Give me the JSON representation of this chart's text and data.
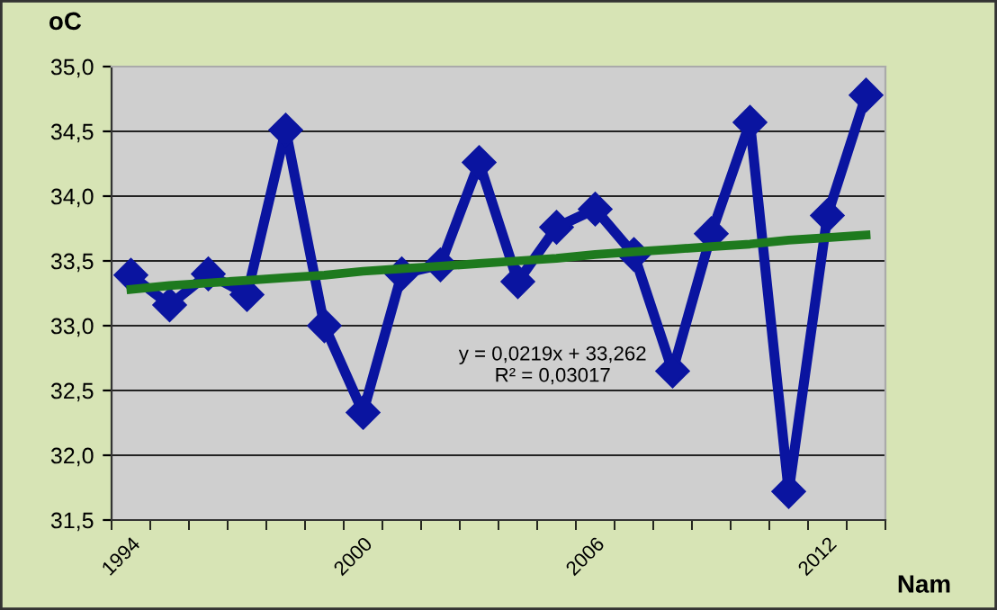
{
  "chart_data": {
    "type": "line",
    "ylabel": "oC",
    "xlabel": "Nam",
    "categories": [
      "1994",
      null,
      null,
      null,
      null,
      null,
      "2000",
      null,
      null,
      null,
      null,
      null,
      "2006",
      null,
      null,
      null,
      null,
      null,
      "2012",
      null
    ],
    "series": [
      {
        "color": "#0a14a0",
        "marker": "diamond",
        "values": [
          33.39,
          33.16,
          33.4,
          33.24,
          34.51,
          33.0,
          32.33,
          33.4,
          33.47,
          34.26,
          33.34,
          33.76,
          33.9,
          33.55,
          32.65,
          33.71,
          34.57,
          31.72,
          33.85,
          34.78
        ]
      },
      {
        "type": "line",
        "color": "#1e7a1e",
        "marker": "none",
        "values": [
          33.28,
          33.31,
          33.33,
          33.35,
          33.37,
          33.39,
          33.42,
          33.44,
          33.46,
          33.48,
          33.5,
          33.52,
          33.55,
          33.57,
          33.59,
          33.61,
          33.63,
          33.66,
          33.68,
          33.7
        ]
      }
    ],
    "annotations": [
      "y = 0,0219x + 33,262\nR² = 0,03017"
    ],
    "ylim": [
      31.5,
      35.0
    ],
    "yticks": [
      {
        "value": 31.5,
        "label": "31,5"
      },
      {
        "value": 32.0,
        "label": "32,0"
      },
      {
        "value": 32.5,
        "label": "32,5"
      },
      {
        "value": 33.0,
        "label": "33,0"
      },
      {
        "value": 33.5,
        "label": "33,5"
      },
      {
        "value": 34.0,
        "label": "34,0"
      },
      {
        "value": 34.5,
        "label": "34,5"
      },
      {
        "value": 35.0,
        "label": "35,0"
      }
    ],
    "grid": "y",
    "legend": false,
    "line_style": "solid"
  }
}
